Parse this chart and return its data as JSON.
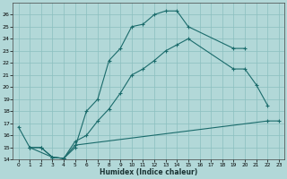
{
  "xlabel": "Humidex (Indice chaleur)",
  "background_color": "#b2d8d8",
  "grid_color": "#8bbfbf",
  "line_color": "#1a6b6b",
  "xlim": [
    -0.5,
    23.5
  ],
  "ylim": [
    14,
    27
  ],
  "xticks": [
    0,
    1,
    2,
    3,
    4,
    5,
    6,
    7,
    8,
    9,
    10,
    11,
    12,
    13,
    14,
    15,
    16,
    17,
    18,
    19,
    20,
    21,
    22,
    23
  ],
  "yticks": [
    14,
    15,
    16,
    17,
    18,
    19,
    20,
    21,
    22,
    23,
    24,
    25,
    26
  ],
  "series": [
    {
      "x": [
        0,
        1,
        3,
        4,
        5,
        6,
        7,
        8,
        9,
        10,
        11,
        12,
        13,
        14,
        15,
        19,
        20
      ],
      "y": [
        16.7,
        15.0,
        14.2,
        14.1,
        15.0,
        18.0,
        19.0,
        22.2,
        23.2,
        25.0,
        25.2,
        26.0,
        26.3,
        26.3,
        25.0,
        23.2,
        23.2
      ]
    },
    {
      "x": [
        1,
        2,
        3,
        4,
        5,
        6,
        7,
        8,
        9,
        10,
        11,
        12,
        13,
        14,
        15,
        19,
        20,
        21,
        22
      ],
      "y": [
        15.0,
        15.0,
        14.2,
        14.1,
        15.5,
        16.0,
        17.2,
        18.2,
        19.5,
        21.0,
        21.5,
        22.2,
        23.0,
        23.5,
        24.0,
        21.5,
        21.5,
        20.2,
        18.5
      ]
    },
    {
      "x": [
        1,
        2,
        3,
        4,
        5,
        22,
        23
      ],
      "y": [
        15.0,
        15.0,
        14.2,
        14.1,
        15.2,
        17.2,
        17.2
      ]
    }
  ]
}
